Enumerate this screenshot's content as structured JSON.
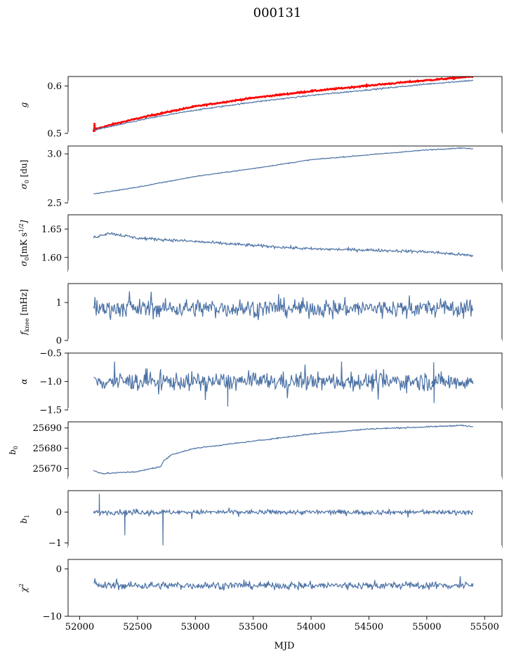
{
  "figure": {
    "title": "000131"
  },
  "colors": {
    "series_blue": "#4c72a5",
    "series_red": "#ff0000"
  },
  "chart_data": [
    {
      "type": "line",
      "panel": 1,
      "ylabel": "g",
      "xlim": [
        51900,
        55650
      ],
      "ylim": [
        0.5,
        0.62
      ],
      "yticks": [
        0.5,
        0.6
      ],
      "ytick_labels": [
        "0.5",
        "0.6"
      ],
      "x_range": [
        52120,
        55400
      ],
      "series": [
        {
          "color": "#ff0000",
          "values_xy": [
            [
              52120,
              0.508
            ],
            [
              52300,
              0.52
            ],
            [
              52600,
              0.537
            ],
            [
              53000,
              0.557
            ],
            [
              53500,
              0.575
            ],
            [
              54000,
              0.589
            ],
            [
              54500,
              0.601
            ],
            [
              55000,
              0.612
            ],
            [
              55400,
              0.62
            ]
          ]
        },
        {
          "color": "#4c72a5",
          "values_xy": [
            [
              52120,
              0.507
            ],
            [
              52300,
              0.516
            ],
            [
              52600,
              0.532
            ],
            [
              53000,
              0.549
            ],
            [
              53500,
              0.566
            ],
            [
              54000,
              0.58
            ],
            [
              54500,
              0.592
            ],
            [
              55000,
              0.604
            ],
            [
              55400,
              0.612
            ]
          ]
        }
      ]
    },
    {
      "type": "line",
      "panel": 2,
      "ylabel": "σ0 [du]",
      "ylim": [
        2.5,
        3.08
      ],
      "yticks": [
        2.5,
        3.0
      ],
      "ytick_labels": [
        "2.5",
        "3.0"
      ],
      "series": [
        {
          "color": "#4c72a5",
          "values_xy": [
            [
              52120,
              2.59
            ],
            [
              52500,
              2.66
            ],
            [
              53000,
              2.77
            ],
            [
              53500,
              2.85
            ],
            [
              54000,
              2.94
            ],
            [
              54500,
              2.99
            ],
            [
              55000,
              3.04
            ],
            [
              55300,
              3.06
            ],
            [
              55400,
              3.05
            ]
          ]
        }
      ]
    },
    {
      "type": "line",
      "panel": 3,
      "ylabel": "σ0[mK s1/2]",
      "ylim": [
        1.575,
        1.675
      ],
      "yticks": [
        1.6,
        1.65
      ],
      "ytick_labels": [
        "1.60",
        "1.65"
      ],
      "series": [
        {
          "color": "#4c72a5",
          "values_xy": [
            [
              52120,
              1.635
            ],
            [
              52250,
              1.643
            ],
            [
              52500,
              1.634
            ],
            [
              53000,
              1.628
            ],
            [
              53500,
              1.621
            ],
            [
              54000,
              1.615
            ],
            [
              54500,
              1.613
            ],
            [
              55000,
              1.61
            ],
            [
              55400,
              1.603
            ]
          ]
        }
      ]
    },
    {
      "type": "line",
      "panel": 4,
      "ylabel": "fknee [mHz]",
      "ylim": [
        0,
        1.5
      ],
      "yticks": [
        0,
        1
      ],
      "ytick_labels": [
        "0",
        "1"
      ],
      "series": [
        {
          "color": "#4c72a5",
          "mean": 0.85,
          "spread": 0.45,
          "min": 0.45,
          "max": 1.5
        }
      ]
    },
    {
      "type": "line",
      "panel": 5,
      "ylabel": "α",
      "ylim": [
        -1.5,
        -0.5
      ],
      "yticks": [
        -1.5,
        -1.0,
        -0.5
      ],
      "ytick_labels": [
        "−1.5",
        "−1.0",
        "−0.5"
      ],
      "series": [
        {
          "color": "#4c72a5",
          "mean": -1.0,
          "spread": 0.3,
          "min": -1.45,
          "max": -0.65
        }
      ]
    },
    {
      "type": "line",
      "panel": 6,
      "ylabel": "b0",
      "ylim": [
        25665,
        25693
      ],
      "yticks": [
        25670,
        25680,
        25690
      ],
      "ytick_labels": [
        "25670",
        "25680",
        "25690"
      ],
      "series": [
        {
          "color": "#4c72a5",
          "values_xy": [
            [
              52120,
              25669
            ],
            [
              52200,
              25667.5
            ],
            [
              52500,
              25668.5
            ],
            [
              52700,
              25671
            ],
            [
              52730,
              25674
            ],
            [
              52800,
              25677
            ],
            [
              53000,
              25680
            ],
            [
              53500,
              25683.5
            ],
            [
              54000,
              25687
            ],
            [
              54500,
              25689.5
            ],
            [
              55000,
              25690.5
            ],
            [
              55300,
              25691.3
            ],
            [
              55400,
              25690.5
            ]
          ]
        }
      ]
    },
    {
      "type": "line",
      "panel": 7,
      "ylabel": "b1",
      "ylim": [
        -1.15,
        0.7
      ],
      "yticks": [
        -1,
        0
      ],
      "ytick_labels": [
        "−1",
        "0"
      ],
      "series": [
        {
          "color": "#4c72a5",
          "mean": 0.0,
          "spread": 0.15,
          "min": -1.1,
          "max": 0.65
        }
      ]
    },
    {
      "type": "line",
      "panel": 8,
      "ylabel": "χ2",
      "xlabel": "MJD",
      "ylim": [
        -10,
        2
      ],
      "yticks": [
        -10,
        0
      ],
      "ytick_labels": [
        "−10",
        "0"
      ],
      "xticks": [
        52000,
        52500,
        53000,
        53500,
        54000,
        54500,
        55000,
        55500
      ],
      "xtick_labels": [
        "52000",
        "52500",
        "53000",
        "53500",
        "54000",
        "54500",
        "55000",
        "55500"
      ],
      "series": [
        {
          "color": "#4c72a5",
          "mean": -3.5,
          "spread": 1.5,
          "min": -7,
          "max": 0
        }
      ]
    }
  ]
}
